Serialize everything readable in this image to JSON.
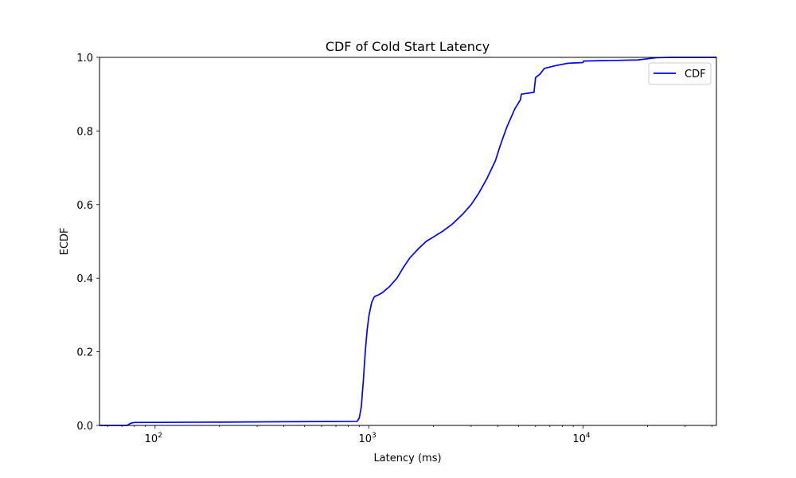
{
  "chart_data": {
    "type": "line",
    "title": "CDF of Cold Start Latency",
    "xlabel": "Latency (ms)",
    "ylabel": "ECDF",
    "xscale": "log",
    "xlim": [
      55,
      42000
    ],
    "ylim": [
      0.0,
      1.0
    ],
    "x_ticks": [
      {
        "value": 100,
        "base": "10",
        "exp": "2"
      },
      {
        "value": 1000,
        "base": "10",
        "exp": "3"
      },
      {
        "value": 10000,
        "base": "10",
        "exp": "4"
      }
    ],
    "y_ticks": [
      {
        "value": 0.0,
        "label": "0.0"
      },
      {
        "value": 0.2,
        "label": "0.2"
      },
      {
        "value": 0.4,
        "label": "0.4"
      },
      {
        "value": 0.6,
        "label": "0.6"
      },
      {
        "value": 0.8,
        "label": "0.8"
      },
      {
        "value": 1.0,
        "label": "1.0"
      }
    ],
    "grid": false,
    "legend": {
      "position": "top-right",
      "entries": [
        "CDF"
      ]
    },
    "series": [
      {
        "name": "CDF",
        "color": "#0000ff",
        "points": [
          [
            55,
            0.0
          ],
          [
            74,
            0.0
          ],
          [
            77,
            0.006
          ],
          [
            80,
            0.008
          ],
          [
            200,
            0.009
          ],
          [
            400,
            0.01
          ],
          [
            880,
            0.011
          ],
          [
            900,
            0.02
          ],
          [
            920,
            0.05
          ],
          [
            940,
            0.12
          ],
          [
            960,
            0.2
          ],
          [
            980,
            0.26
          ],
          [
            1000,
            0.3
          ],
          [
            1030,
            0.335
          ],
          [
            1060,
            0.35
          ],
          [
            1100,
            0.354
          ],
          [
            1150,
            0.36
          ],
          [
            1250,
            0.378
          ],
          [
            1350,
            0.4
          ],
          [
            1450,
            0.43
          ],
          [
            1550,
            0.455
          ],
          [
            1700,
            0.48
          ],
          [
            1850,
            0.5
          ],
          [
            2000,
            0.512
          ],
          [
            2200,
            0.527
          ],
          [
            2450,
            0.547
          ],
          [
            2750,
            0.575
          ],
          [
            3000,
            0.6
          ],
          [
            3250,
            0.63
          ],
          [
            3550,
            0.67
          ],
          [
            3900,
            0.72
          ],
          [
            4100,
            0.76
          ],
          [
            4400,
            0.81
          ],
          [
            4800,
            0.86
          ],
          [
            5100,
            0.885
          ],
          [
            5150,
            0.9
          ],
          [
            5900,
            0.905
          ],
          [
            6000,
            0.945
          ],
          [
            6300,
            0.955
          ],
          [
            6600,
            0.97
          ],
          [
            7500,
            0.978
          ],
          [
            8500,
            0.984
          ],
          [
            10000,
            0.986
          ],
          [
            10050,
            0.99
          ],
          [
            15000,
            0.992
          ],
          [
            18000,
            0.993
          ],
          [
            22000,
            0.999
          ],
          [
            26000,
            1.0
          ],
          [
            42000,
            1.0
          ]
        ]
      }
    ]
  }
}
